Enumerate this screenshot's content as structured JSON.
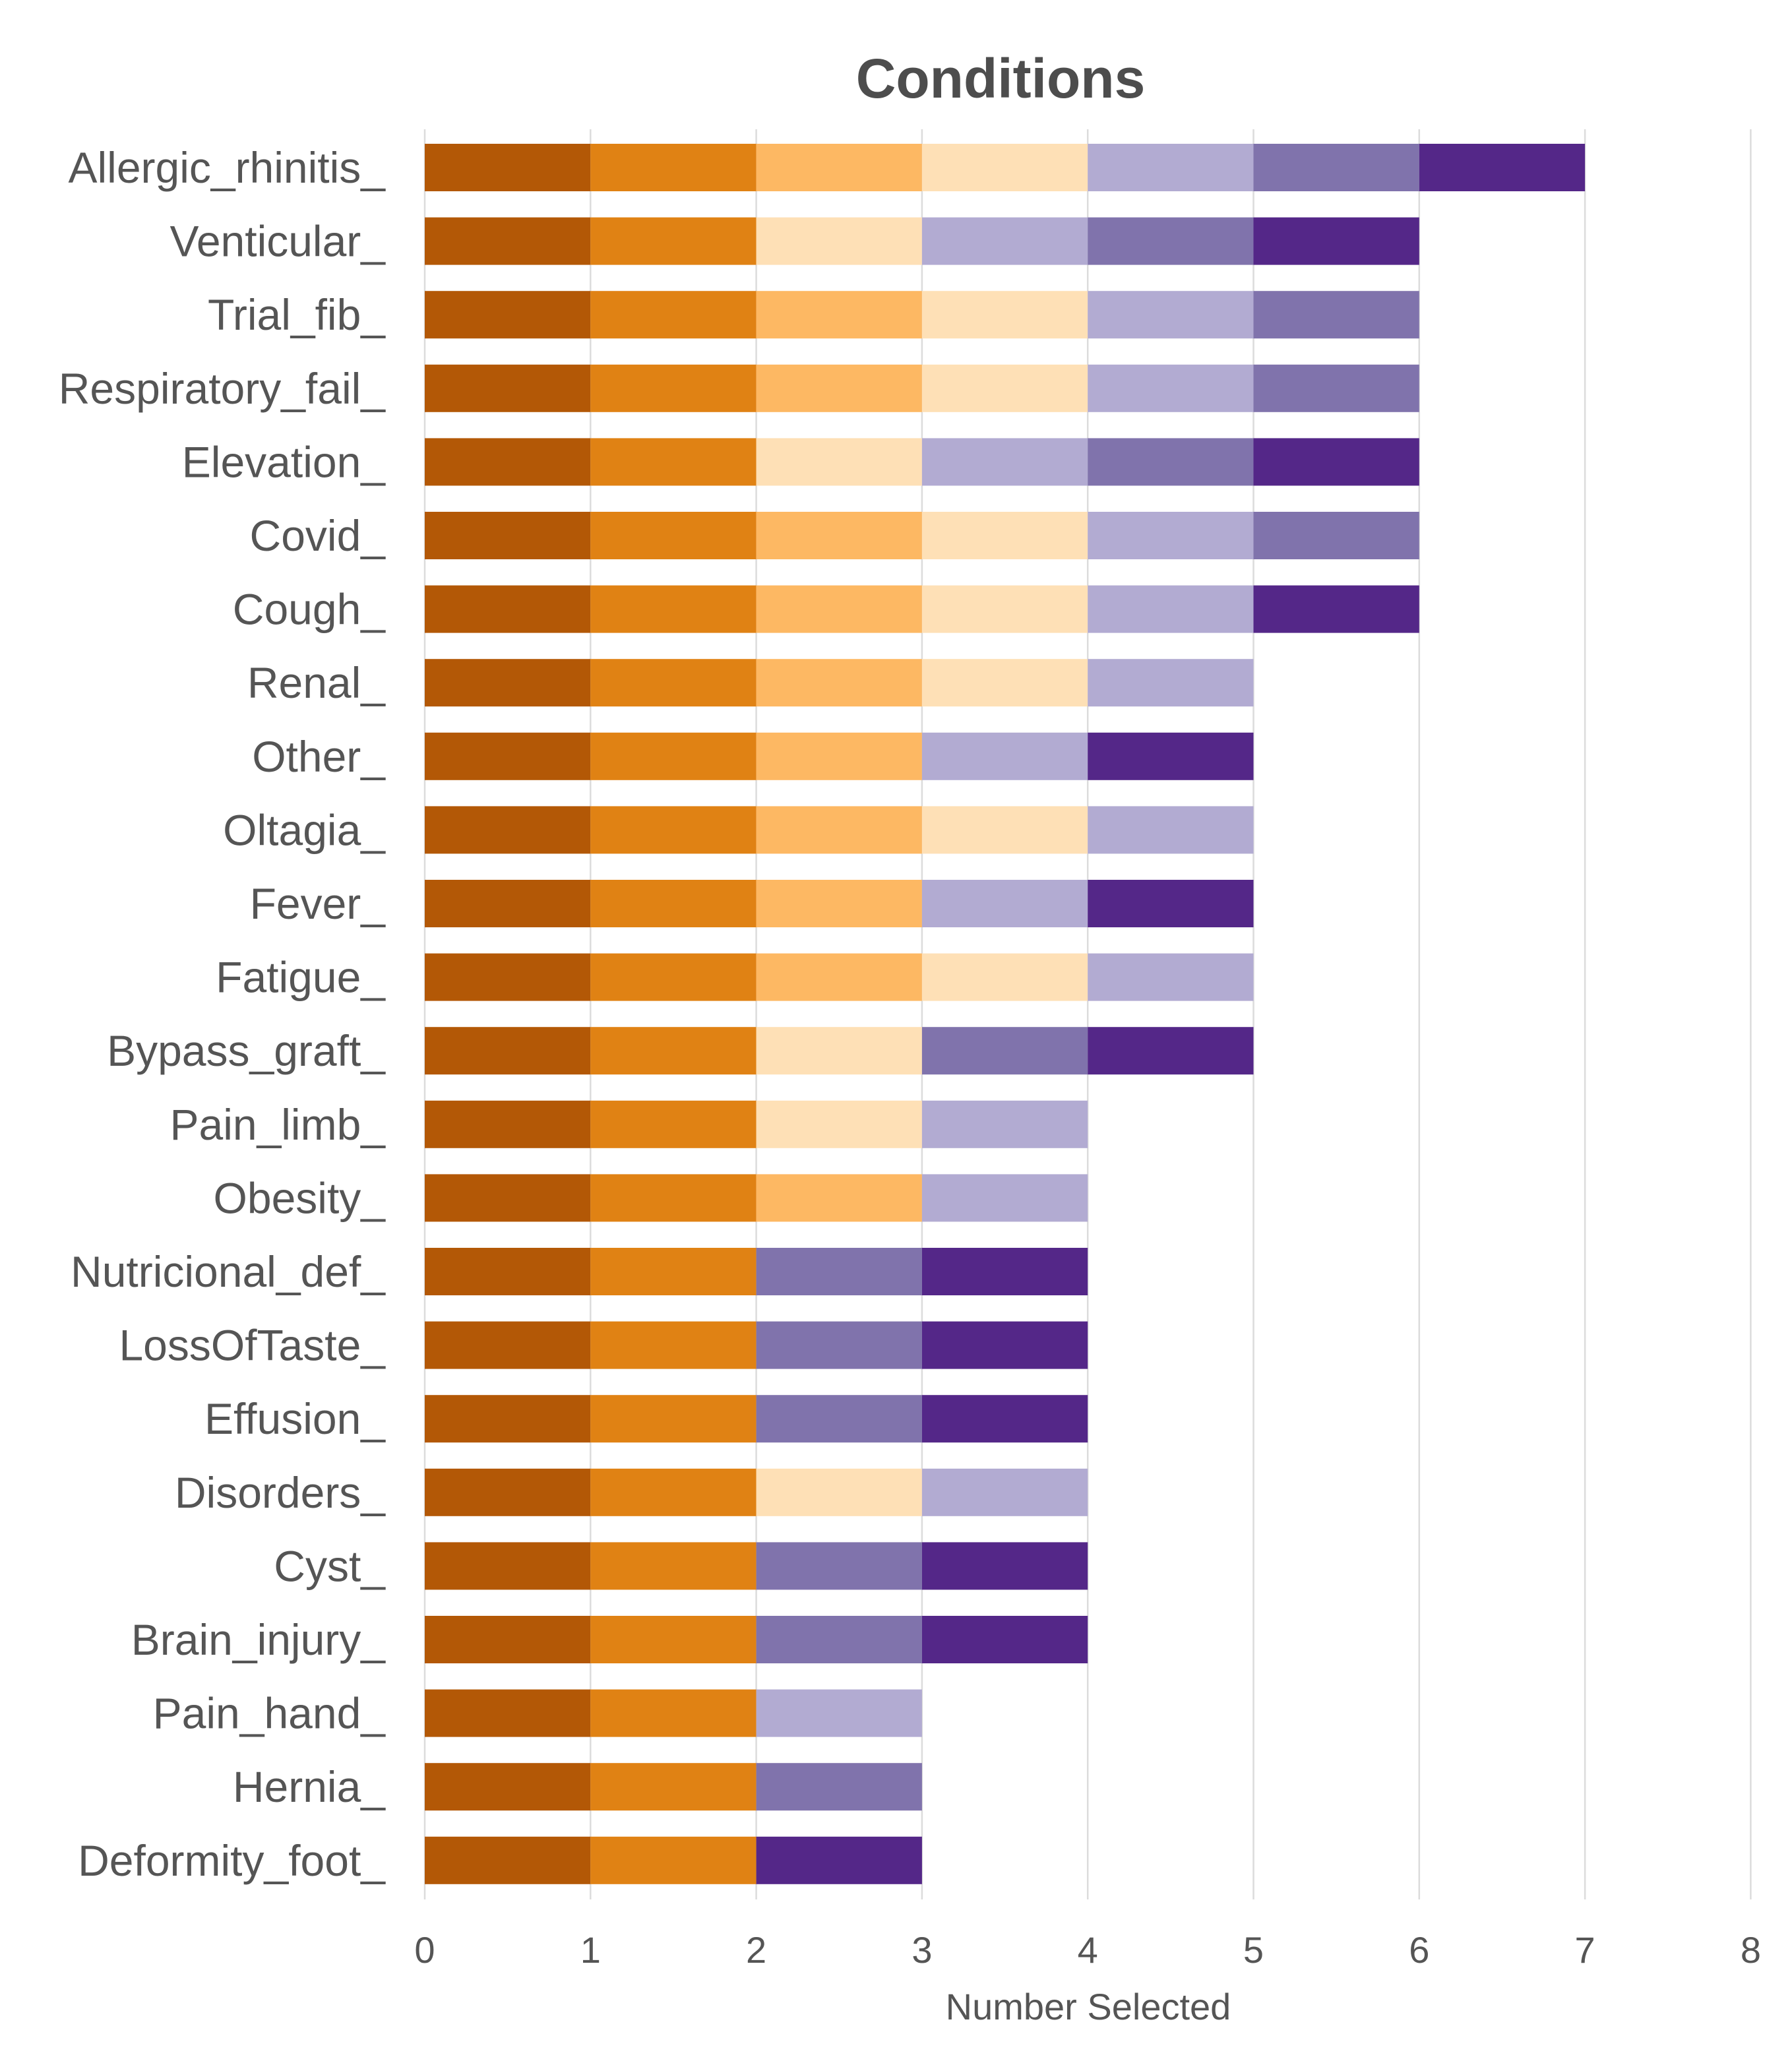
{
  "chart_data": {
    "type": "bar",
    "orientation": "horizontal",
    "stacked": true,
    "title": "Conditions",
    "xlabel": "Number Selected",
    "ylabel": "",
    "xlim": [
      0,
      8
    ],
    "xticks": [
      0,
      1,
      2,
      3,
      4,
      5,
      6,
      7,
      8
    ],
    "grid": true,
    "legend": "none",
    "categories": [
      "Allergic_rhinitis_",
      "Venticular_",
      "Trial_fib_",
      "Respiratory_fail_",
      "Elevation_",
      "Covid_",
      "Cough_",
      "Renal_",
      "Other_",
      "Oltagia_",
      "Fever_",
      "Fatigue_",
      "Bypass_graft_",
      "Pain_limb_",
      "Obesity_",
      "Nutricional_def_",
      "LossOfTaste_",
      "Effusion_",
      "Disorders_",
      "Cyst_",
      "Brain_injury_",
      "Pain_hand_",
      "Hernia_",
      "Deformity_foot_"
    ],
    "series": [
      {
        "color": "#b35806",
        "values": [
          1,
          1,
          1,
          1,
          1,
          1,
          1,
          1,
          1,
          1,
          1,
          1,
          1,
          1,
          1,
          1,
          1,
          1,
          1,
          1,
          1,
          1,
          1,
          1
        ]
      },
      {
        "color": "#e08214",
        "values": [
          1,
          1,
          1,
          1,
          1,
          1,
          1,
          1,
          1,
          1,
          1,
          1,
          1,
          1,
          1,
          1,
          1,
          1,
          1,
          1,
          1,
          1,
          1,
          1
        ]
      },
      {
        "color": "#fdb863",
        "values": [
          1,
          0,
          1,
          1,
          0,
          1,
          1,
          1,
          1,
          1,
          1,
          1,
          0,
          0,
          1,
          0,
          0,
          0,
          0,
          0,
          0,
          0,
          0,
          0
        ]
      },
      {
        "color": "#fee0b6",
        "values": [
          1,
          1,
          1,
          1,
          1,
          1,
          1,
          1,
          0,
          1,
          0,
          1,
          1,
          1,
          0,
          0,
          0,
          0,
          1,
          0,
          0,
          0,
          0,
          0
        ]
      },
      {
        "color": "#b2abd2",
        "values": [
          1,
          1,
          1,
          1,
          1,
          1,
          1,
          1,
          1,
          1,
          1,
          1,
          0,
          1,
          1,
          0,
          0,
          0,
          1,
          0,
          0,
          1,
          0,
          0
        ]
      },
      {
        "color": "#8073ac",
        "values": [
          1,
          1,
          1,
          1,
          1,
          1,
          0,
          0,
          0,
          0,
          0,
          0,
          1,
          0,
          0,
          1,
          1,
          1,
          0,
          1,
          1,
          0,
          1,
          0
        ]
      },
      {
        "color": "#542788",
        "values": [
          1,
          1,
          0,
          0,
          1,
          0,
          1,
          0,
          1,
          0,
          1,
          0,
          1,
          0,
          0,
          1,
          1,
          1,
          0,
          1,
          1,
          0,
          0,
          1
        ]
      }
    ]
  }
}
